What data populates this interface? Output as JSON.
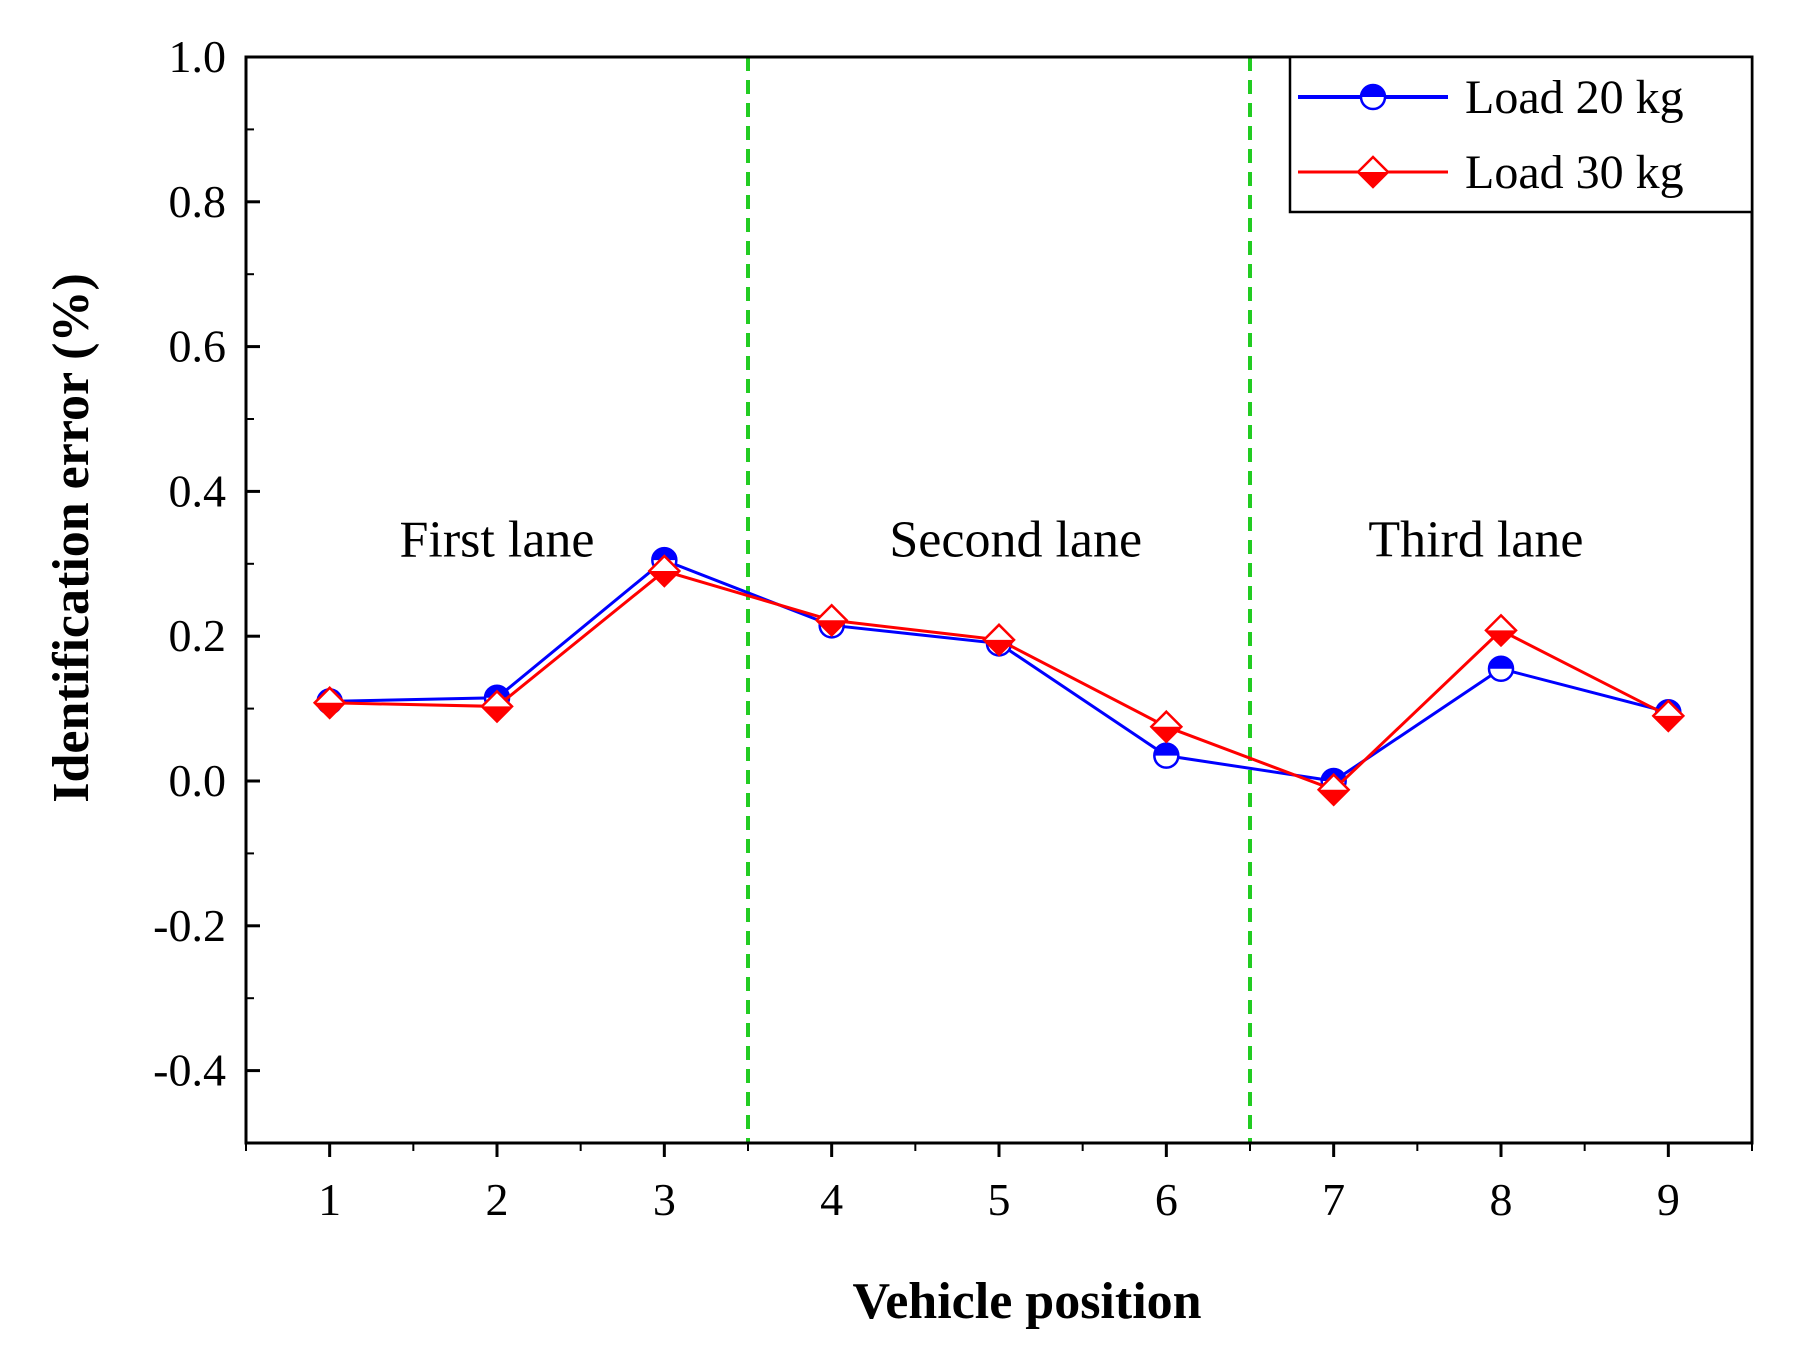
{
  "chart_data": {
    "type": "line",
    "title": "",
    "xlabel": "Vehicle position",
    "ylabel": "Identification error (%)",
    "x": [
      1,
      2,
      3,
      4,
      5,
      6,
      7,
      8,
      9
    ],
    "xlim": [
      0.5,
      9.5
    ],
    "ylim": [
      -0.5,
      1.0
    ],
    "yticks": [
      -0.4,
      -0.2,
      0.0,
      0.2,
      0.4,
      0.6,
      0.8,
      1.0
    ],
    "ytick_labels": [
      "-0.4",
      "-0.2",
      "0.0",
      "0.2",
      "0.4",
      "0.6",
      "0.8",
      "1.0"
    ],
    "xtick_labels": [
      "1",
      "2",
      "3",
      "4",
      "5",
      "6",
      "7",
      "8",
      "9"
    ],
    "grid": false,
    "legend_position": "top-right",
    "series": [
      {
        "name": "Load 20 kg",
        "color": "#0000ff",
        "marker": "circle-half",
        "values": [
          0.11,
          0.115,
          0.305,
          0.215,
          0.19,
          0.035,
          0.0,
          0.155,
          0.095
        ]
      },
      {
        "name": "Load 30 kg",
        "color": "#ff0000",
        "marker": "diamond-half",
        "values": [
          0.108,
          0.103,
          0.29,
          0.222,
          0.195,
          0.075,
          -0.012,
          0.208,
          0.09
        ]
      }
    ],
    "dividers": {
      "color": "#22cc22",
      "x_positions": [
        3.5,
        6.5
      ]
    },
    "annotations": [
      {
        "text": "First lane",
        "x": 2.0,
        "y": 0.31
      },
      {
        "text": "Second lane",
        "x": 5.1,
        "y": 0.31
      },
      {
        "text": "Third lane",
        "x": 7.85,
        "y": 0.31
      }
    ]
  }
}
